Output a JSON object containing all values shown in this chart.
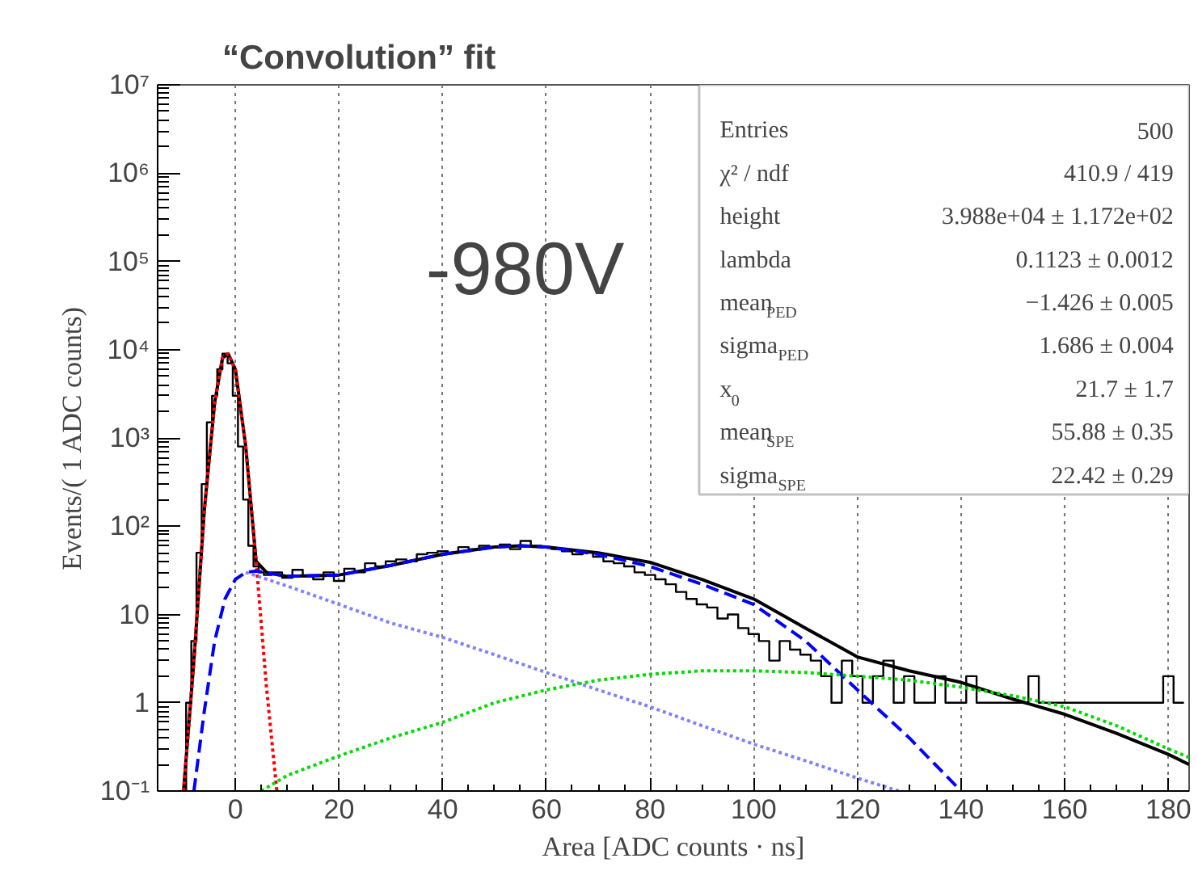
{
  "chart_data": {
    "type": "line",
    "title": "“Convolution” fit",
    "xlabel": "Area [ADC counts · ns]",
    "ylabel": "Events/( 1 ADC counts)",
    "annotations": [
      "-980V",
      "Entries",
      "500",
      "χ² / ndf",
      "410.9 / 419",
      "height",
      "3.988e+04 ± 1.172e+02",
      "lambda",
      "0.1123 ± 0.0012",
      "mean$_{PED}$",
      "−1.426 ± 0.005",
      "sigma$_{PED}$",
      "1.686 ± 0.004",
      "x$_{0}$",
      "21.7 ± 1.7",
      "mean$_{SPE}$",
      "55.88 ± 0.35",
      "sigma$_{SPE}$",
      "22.42 ± 0.29"
    ],
    "log": "y",
    "grid": "x",
    "xlim": [
      -15,
      184
    ],
    "ylim": [
      0.1,
      10000000
    ],
    "xticks": [
      0,
      20,
      40,
      60,
      80,
      100,
      120,
      140,
      160,
      180
    ],
    "yticks": [
      {
        "value": 0.1,
        "label": "10⁻¹"
      },
      1,
      10,
      {
        "value": 100,
        "label": "10²"
      },
      {
        "value": 1000,
        "label": "10³"
      },
      {
        "value": 10000,
        "label": "10⁴"
      },
      {
        "value": 100000,
        "label": "10⁵"
      },
      {
        "value": 1000000,
        "label": "10⁶"
      },
      {
        "value": 10000000,
        "label": "10⁷"
      }
    ],
    "series": [
      {
        "type": "step",
        "color": "#000000",
        "line_style": "solid",
        "x": [
          -10,
          -9,
          -8,
          -7,
          -6,
          -5,
          -4,
          -3,
          -2,
          -1,
          0,
          1,
          2,
          3,
          4,
          5,
          6,
          8,
          10,
          12,
          14,
          16,
          18,
          20,
          22,
          24,
          26,
          28,
          30,
          32,
          34,
          36,
          38,
          40,
          42,
          44,
          46,
          48,
          50,
          52,
          54,
          56,
          58,
          60,
          62,
          64,
          66,
          68,
          70,
          72,
          74,
          76,
          78,
          80,
          82,
          84,
          86,
          88,
          90,
          92,
          94,
          96,
          98,
          100,
          102,
          104,
          106,
          108,
          110,
          112,
          114,
          116,
          118,
          120,
          122,
          124,
          126,
          128,
          130,
          132,
          134,
          136,
          138,
          140,
          142,
          144,
          146,
          148,
          150,
          152,
          154,
          156,
          158,
          160,
          162,
          164,
          166,
          168,
          170,
          172,
          174,
          176,
          178,
          180,
          182
        ],
        "values": [
          0.1,
          1,
          5,
          50,
          300,
          1500,
          3000,
          6000,
          9000,
          7000,
          3000,
          800,
          200,
          60,
          35,
          30,
          28,
          30,
          26,
          32,
          27,
          25,
          30,
          24,
          33,
          30,
          38,
          35,
          40,
          42,
          40,
          48,
          50,
          52,
          50,
          58,
          55,
          60,
          58,
          62,
          55,
          68,
          60,
          58,
          55,
          52,
          48,
          50,
          45,
          40,
          38,
          35,
          30,
          28,
          25,
          22,
          18,
          15,
          13,
          12,
          9,
          10,
          7,
          6,
          5,
          3,
          5,
          4,
          3.5,
          3,
          2,
          1,
          3,
          2,
          1,
          2,
          3,
          1,
          2,
          1,
          1,
          2,
          1,
          1,
          2,
          1,
          1,
          1,
          1,
          1,
          2,
          1,
          1,
          1,
          1,
          1,
          1,
          1,
          1,
          1,
          1,
          1,
          1,
          2,
          1
        ]
      },
      {
        "color": "#000000",
        "line_style": "solid",
        "x": [
          -10,
          -8,
          -6,
          -4,
          -2.5,
          -1.4,
          0,
          2,
          4,
          6,
          10,
          20,
          30,
          40,
          50,
          55,
          60,
          70,
          80,
          90,
          100,
          110,
          120,
          130,
          140,
          150,
          160,
          170,
          180,
          184
        ],
        "values": [
          0.1,
          3,
          150,
          2500,
          8000,
          9000,
          6000,
          800,
          40,
          30,
          27,
          28,
          36,
          48,
          58,
          60,
          58,
          50,
          39,
          25,
          15,
          7,
          3.3,
          2.3,
          1.7,
          1.1,
          0.74,
          0.45,
          0.26,
          0.2
        ]
      },
      {
        "color": "#ff0000",
        "line_style": "dotted",
        "x": [
          -10,
          -8,
          -6,
          -4,
          -2.5,
          -1.4,
          0,
          2,
          4,
          6,
          8
        ],
        "values": [
          0.1,
          3,
          150,
          2500,
          8000,
          9000,
          6000,
          800,
          40,
          1.5,
          0.1
        ]
      },
      {
        "color": "#0000ff",
        "line_style": "dashed",
        "x": [
          -8,
          -6,
          -4,
          -2,
          0,
          2,
          4,
          10,
          20,
          30,
          40,
          50,
          55,
          60,
          70,
          80,
          90,
          100,
          110,
          120,
          130,
          140
        ],
        "values": [
          0.1,
          0.8,
          5,
          15,
          25,
          30,
          31,
          27,
          28,
          36,
          48,
          58,
          60,
          58,
          48,
          35,
          22,
          13,
          5,
          1.4,
          0.4,
          0.1
        ]
      },
      {
        "color": "#8080ff",
        "line_style": "dotted",
        "x": [
          2,
          10,
          20,
          30,
          40,
          50,
          60,
          70,
          80,
          90,
          100,
          110,
          120,
          128
        ],
        "values": [
          30,
          21,
          13,
          8,
          5.5,
          3.5,
          2.2,
          1.4,
          0.9,
          0.55,
          0.34,
          0.22,
          0.14,
          0.1
        ]
      },
      {
        "color": "#00dd00",
        "line_style": "dotted",
        "x": [
          5,
          10,
          20,
          30,
          40,
          50,
          60,
          70,
          80,
          90,
          100,
          110,
          120,
          130,
          140,
          150,
          160,
          170,
          180,
          184
        ],
        "values": [
          0.1,
          0.15,
          0.25,
          0.4,
          0.6,
          1,
          1.4,
          1.8,
          2.1,
          2.3,
          2.3,
          2.2,
          2,
          1.8,
          1.5,
          1.2,
          0.9,
          0.55,
          0.3,
          0.24
        ]
      }
    ]
  }
}
